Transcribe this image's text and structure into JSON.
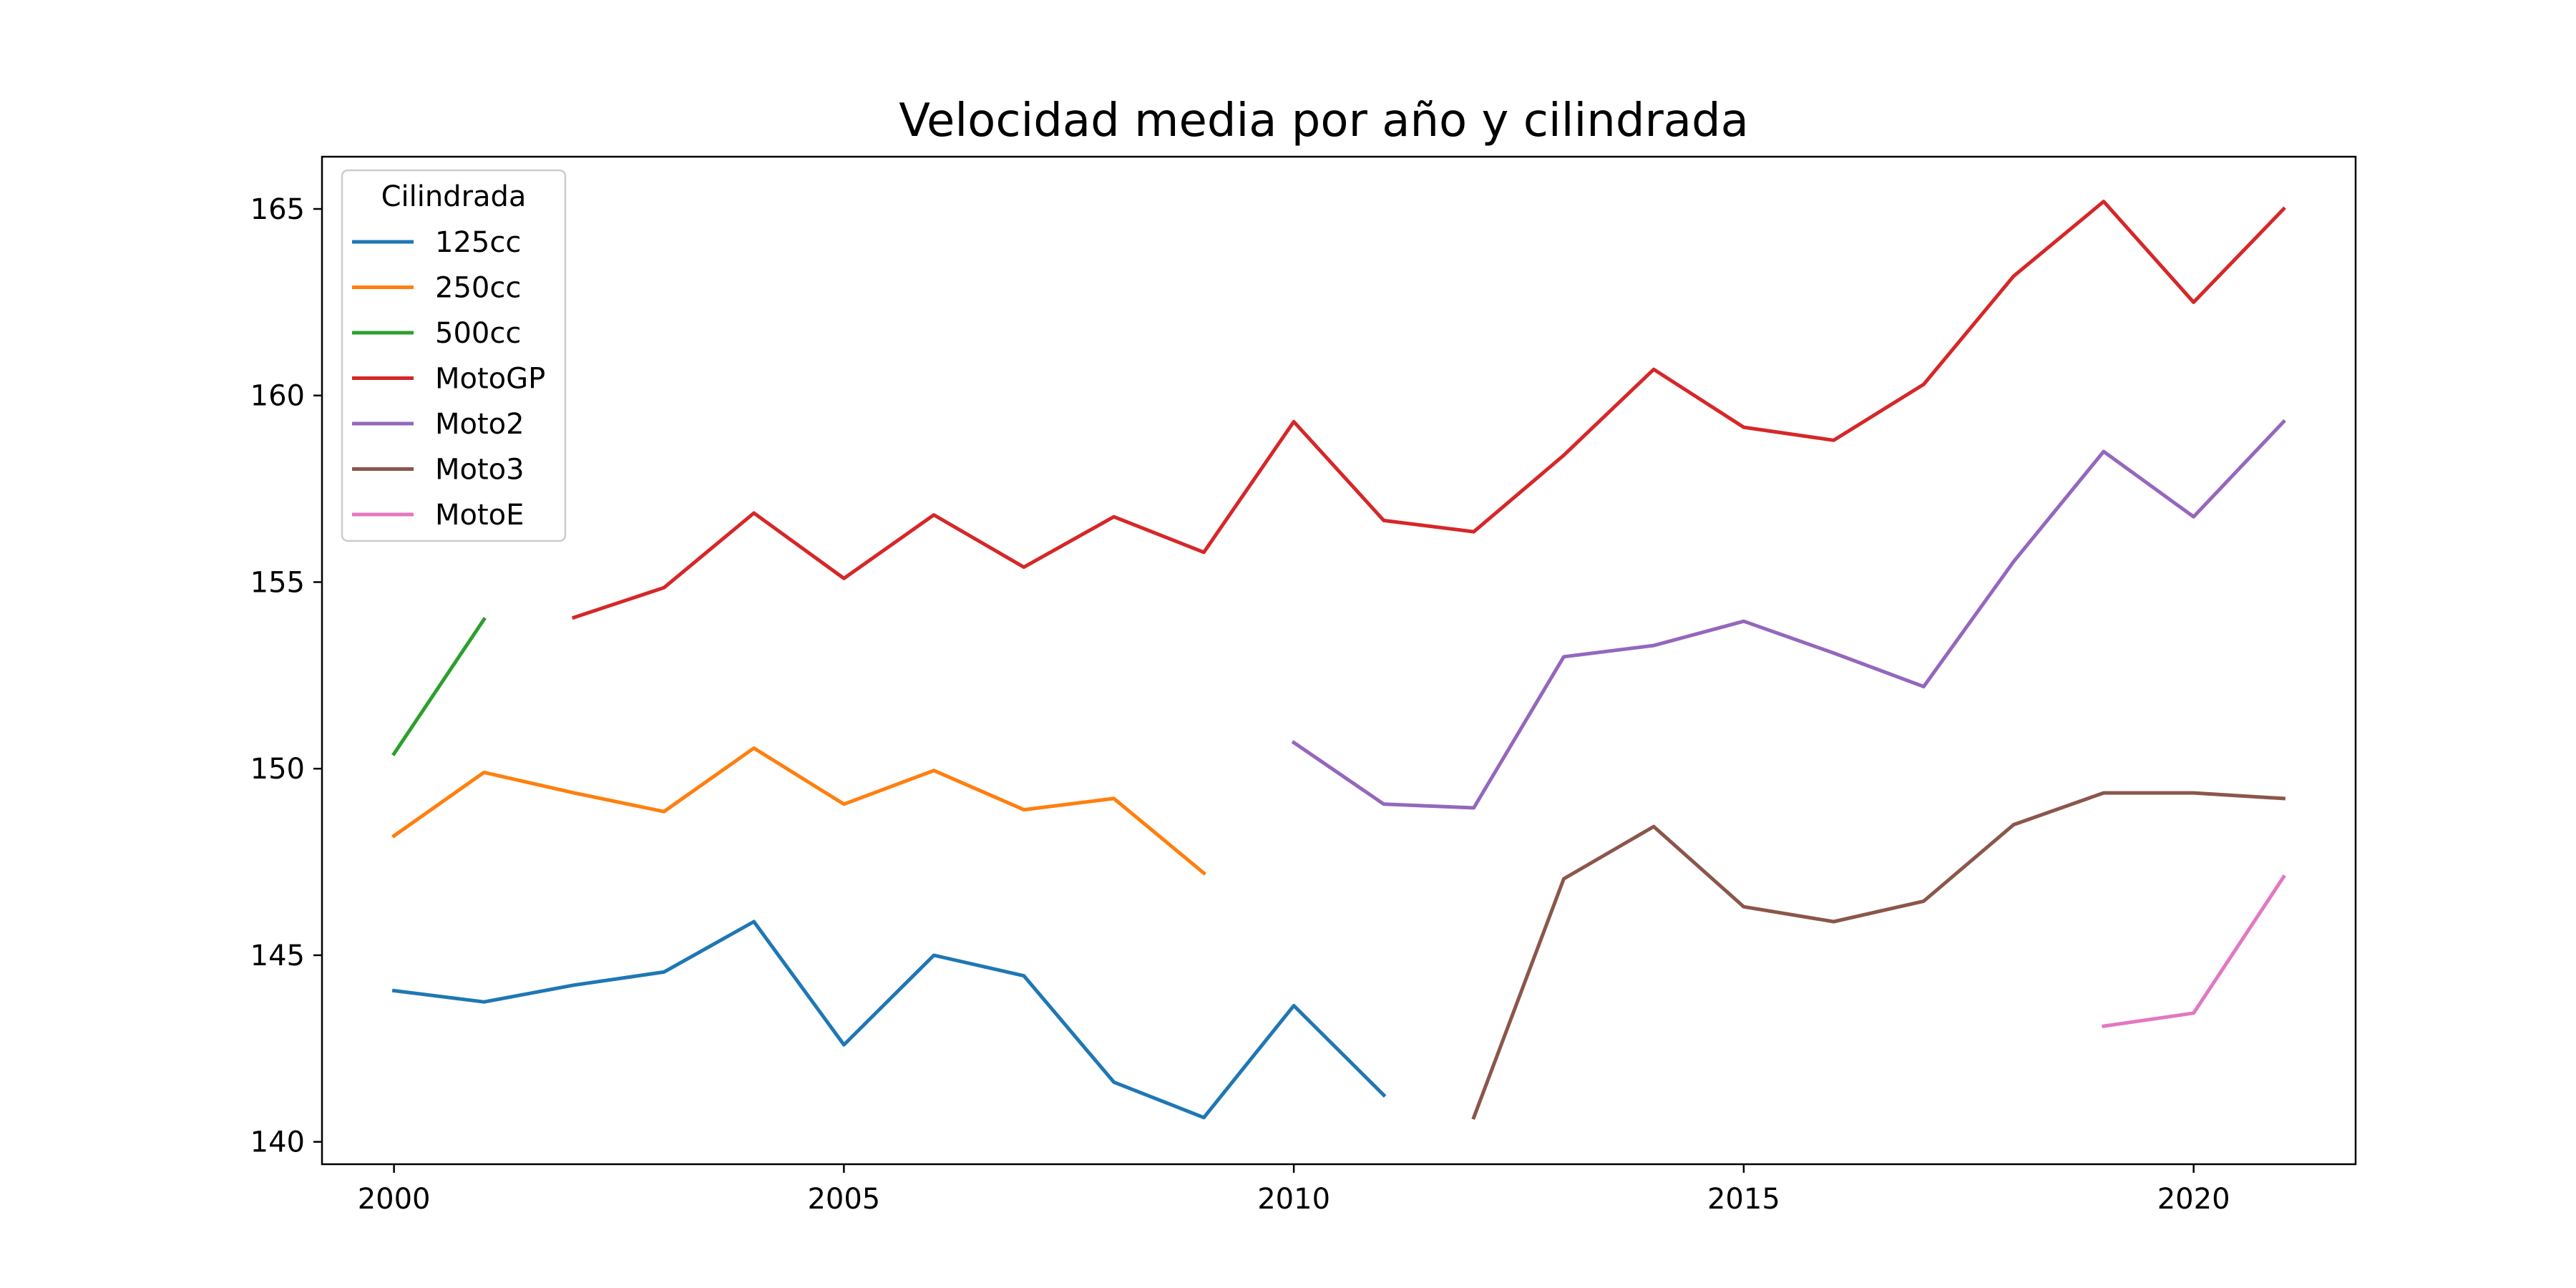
{
  "chart_data": {
    "type": "line",
    "title": "Velocidad media por año y cilindrada",
    "xlabel": "",
    "ylabel": "",
    "xlim": [
      1999.2,
      2021.8
    ],
    "ylim": [
      139.4,
      166.4
    ],
    "xticks": [
      2000,
      2005,
      2010,
      2015,
      2020
    ],
    "yticks": [
      140,
      145,
      150,
      155,
      160,
      165
    ],
    "grid": false,
    "legend": {
      "title": "Cilindrada",
      "placement": "top-left"
    },
    "series": [
      {
        "name": "125cc",
        "color": "#1f77b4",
        "x": [
          2000,
          2001,
          2002,
          2003,
          2004,
          2005,
          2006,
          2007,
          2008,
          2009,
          2010,
          2011
        ],
        "y": [
          144.05,
          143.75,
          144.2,
          144.55,
          145.9,
          142.6,
          145.0,
          144.45,
          141.6,
          140.65,
          143.65,
          141.25
        ]
      },
      {
        "name": "250cc",
        "color": "#ff7f0e",
        "x": [
          2000,
          2001,
          2002,
          2003,
          2004,
          2005,
          2006,
          2007,
          2008,
          2009
        ],
        "y": [
          148.2,
          149.9,
          149.35,
          148.85,
          150.55,
          149.05,
          149.95,
          148.9,
          149.2,
          147.2
        ]
      },
      {
        "name": "500cc",
        "color": "#2ca02c",
        "x": [
          2000,
          2001
        ],
        "y": [
          150.4,
          154.0
        ]
      },
      {
        "name": "MotoGP",
        "color": "#d62728",
        "x": [
          2002,
          2003,
          2004,
          2005,
          2006,
          2007,
          2008,
          2009,
          2010,
          2011,
          2012,
          2013,
          2014,
          2015,
          2016,
          2017,
          2018,
          2019,
          2020,
          2021
        ],
        "y": [
          154.05,
          154.85,
          156.85,
          155.1,
          156.8,
          155.4,
          156.75,
          155.8,
          159.3,
          156.65,
          156.35,
          158.4,
          160.7,
          159.15,
          158.8,
          160.3,
          163.2,
          165.2,
          162.5,
          165.0
        ]
      },
      {
        "name": "Moto2",
        "color": "#9467bd",
        "x": [
          2010,
          2011,
          2012,
          2013,
          2014,
          2015,
          2016,
          2017,
          2018,
          2019,
          2020,
          2021
        ],
        "y": [
          150.7,
          149.05,
          148.95,
          153.0,
          153.3,
          153.95,
          153.1,
          152.2,
          155.55,
          158.5,
          156.75,
          159.3
        ]
      },
      {
        "name": "Moto3",
        "color": "#8c564b",
        "x": [
          2012,
          2013,
          2014,
          2015,
          2016,
          2017,
          2018,
          2019,
          2020,
          2021
        ],
        "y": [
          140.65,
          147.05,
          148.45,
          146.3,
          145.9,
          146.45,
          148.5,
          149.35,
          149.35,
          149.2
        ]
      },
      {
        "name": "MotoE",
        "color": "#e377c2",
        "x": [
          2019,
          2020,
          2021
        ],
        "y": [
          143.1,
          143.45,
          147.1
        ]
      }
    ]
  }
}
